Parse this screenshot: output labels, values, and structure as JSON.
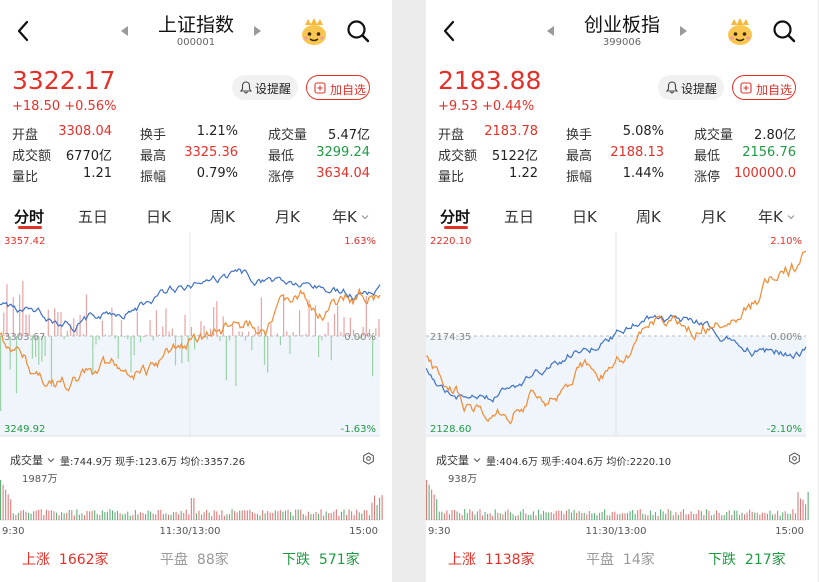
{
  "colors": {
    "up": "#e3312a",
    "down": "#1f9a43",
    "line_price": "#f08b35",
    "line_avg": "#3f72c6",
    "accent": "#e3312a"
  },
  "icons": {
    "back": "chevron-left-icon",
    "prev": "triangle-left-icon",
    "next": "triangle-right-icon",
    "mascot": "mascot-icon",
    "search": "search-icon",
    "bell": "bell-icon",
    "plus": "plus-square-icon",
    "settings": "gear-icon"
  },
  "panels": [
    {
      "title": "上证指数",
      "code": "000001",
      "price": "3322.17",
      "change": "+18.50",
      "change_pct": "+0.56%",
      "remind_label": "设提醒",
      "add_label": "加自选",
      "stats": [
        [
          {
            "label": "开盘",
            "value": "3308.04",
            "color": "red"
          },
          {
            "label": "换手",
            "value": "1.21%",
            "color": "blk"
          },
          {
            "label": "成交量",
            "value": "5.47亿",
            "color": "blk"
          }
        ],
        [
          {
            "label": "成交额",
            "value": "6770亿",
            "color": "blk"
          },
          {
            "label": "最高",
            "value": "3325.36",
            "color": "red"
          },
          {
            "label": "最低",
            "value": "3299.24",
            "color": "grn"
          }
        ],
        [
          {
            "label": "量比",
            "value": "1.21",
            "color": "blk"
          },
          {
            "label": "振幅",
            "value": "0.79%",
            "color": "blk"
          },
          {
            "label": "涨停",
            "value": "3634.04",
            "color": "red"
          }
        ]
      ],
      "tabs": [
        "分时",
        "五日",
        "日K",
        "周K",
        "月K",
        "年K"
      ],
      "chart": {
        "top_value": "3357.42",
        "top_pct": "1.63%",
        "mid_value": "3303.67",
        "mid_pct": "0.00%",
        "bottom_value": "3249.92",
        "bottom_pct": "-1.63%"
      },
      "volume_bar": {
        "label": "成交量",
        "info": "量:744.9万  现手:123.6万  均价:3357.26"
      },
      "volume_chart": {
        "max_label": "1987万",
        "t_start": "9:30",
        "t_mid": "11:30/13:00",
        "t_end": "15:00"
      },
      "breadth": {
        "up_label": "上涨",
        "up_count": "1662家",
        "flat_label": "平盘",
        "flat_count": "88家",
        "down_label": "下跌",
        "down_count": "571家"
      },
      "chart_data": {
        "type": "line",
        "title": "上证指数",
        "x_range": [
          "9:30",
          "15:00"
        ],
        "ylim": [
          3249.92,
          3357.42
        ],
        "base": 3303.67,
        "pct_range": [
          "-1.63%",
          "1.63%"
        ],
        "volume_max": "1987万"
      }
    },
    {
      "title": "创业板指",
      "code": "399006",
      "price": "2183.88",
      "change": "+9.53",
      "change_pct": "+0.44%",
      "remind_label": "设提醒",
      "add_label": "加自选",
      "stats": [
        [
          {
            "label": "开盘",
            "value": "2183.78",
            "color": "red"
          },
          {
            "label": "换手",
            "value": "5.08%",
            "color": "blk"
          },
          {
            "label": "成交量",
            "value": "2.80亿",
            "color": "blk"
          }
        ],
        [
          {
            "label": "成交额",
            "value": "5122亿",
            "color": "blk"
          },
          {
            "label": "最高",
            "value": "2188.13",
            "color": "red"
          },
          {
            "label": "最低",
            "value": "2156.76",
            "color": "grn"
          }
        ],
        [
          {
            "label": "量比",
            "value": "1.22",
            "color": "blk"
          },
          {
            "label": "振幅",
            "value": "1.44%",
            "color": "blk"
          },
          {
            "label": "涨停",
            "value": "100000.0",
            "color": "red"
          }
        ]
      ],
      "tabs": [
        "分时",
        "五日",
        "日K",
        "周K",
        "月K",
        "年K"
      ],
      "chart": {
        "top_value": "2220.10",
        "top_pct": "2.10%",
        "mid_value": "2174.35",
        "mid_pct": "0.00%",
        "bottom_value": "2128.60",
        "bottom_pct": "-2.10%"
      },
      "volume_bar": {
        "label": "成交量",
        "info": "量:404.6万  现手:404.6万  均价:2220.10"
      },
      "volume_chart": {
        "max_label": "938万",
        "t_start": "9:30",
        "t_mid": "11:30/13:00",
        "t_end": "15:00"
      },
      "breadth": {
        "up_label": "上涨",
        "up_count": "1138家",
        "flat_label": "平盘",
        "flat_count": "14家",
        "down_label": "下跌",
        "down_count": "217家"
      },
      "chart_data": {
        "type": "line",
        "title": "创业板指",
        "x_range": [
          "9:30",
          "15:00"
        ],
        "ylim": [
          2128.6,
          2220.1
        ],
        "base": 2174.35,
        "pct_range": [
          "-2.10%",
          "2.10%"
        ],
        "volume_max": "938万"
      }
    }
  ]
}
